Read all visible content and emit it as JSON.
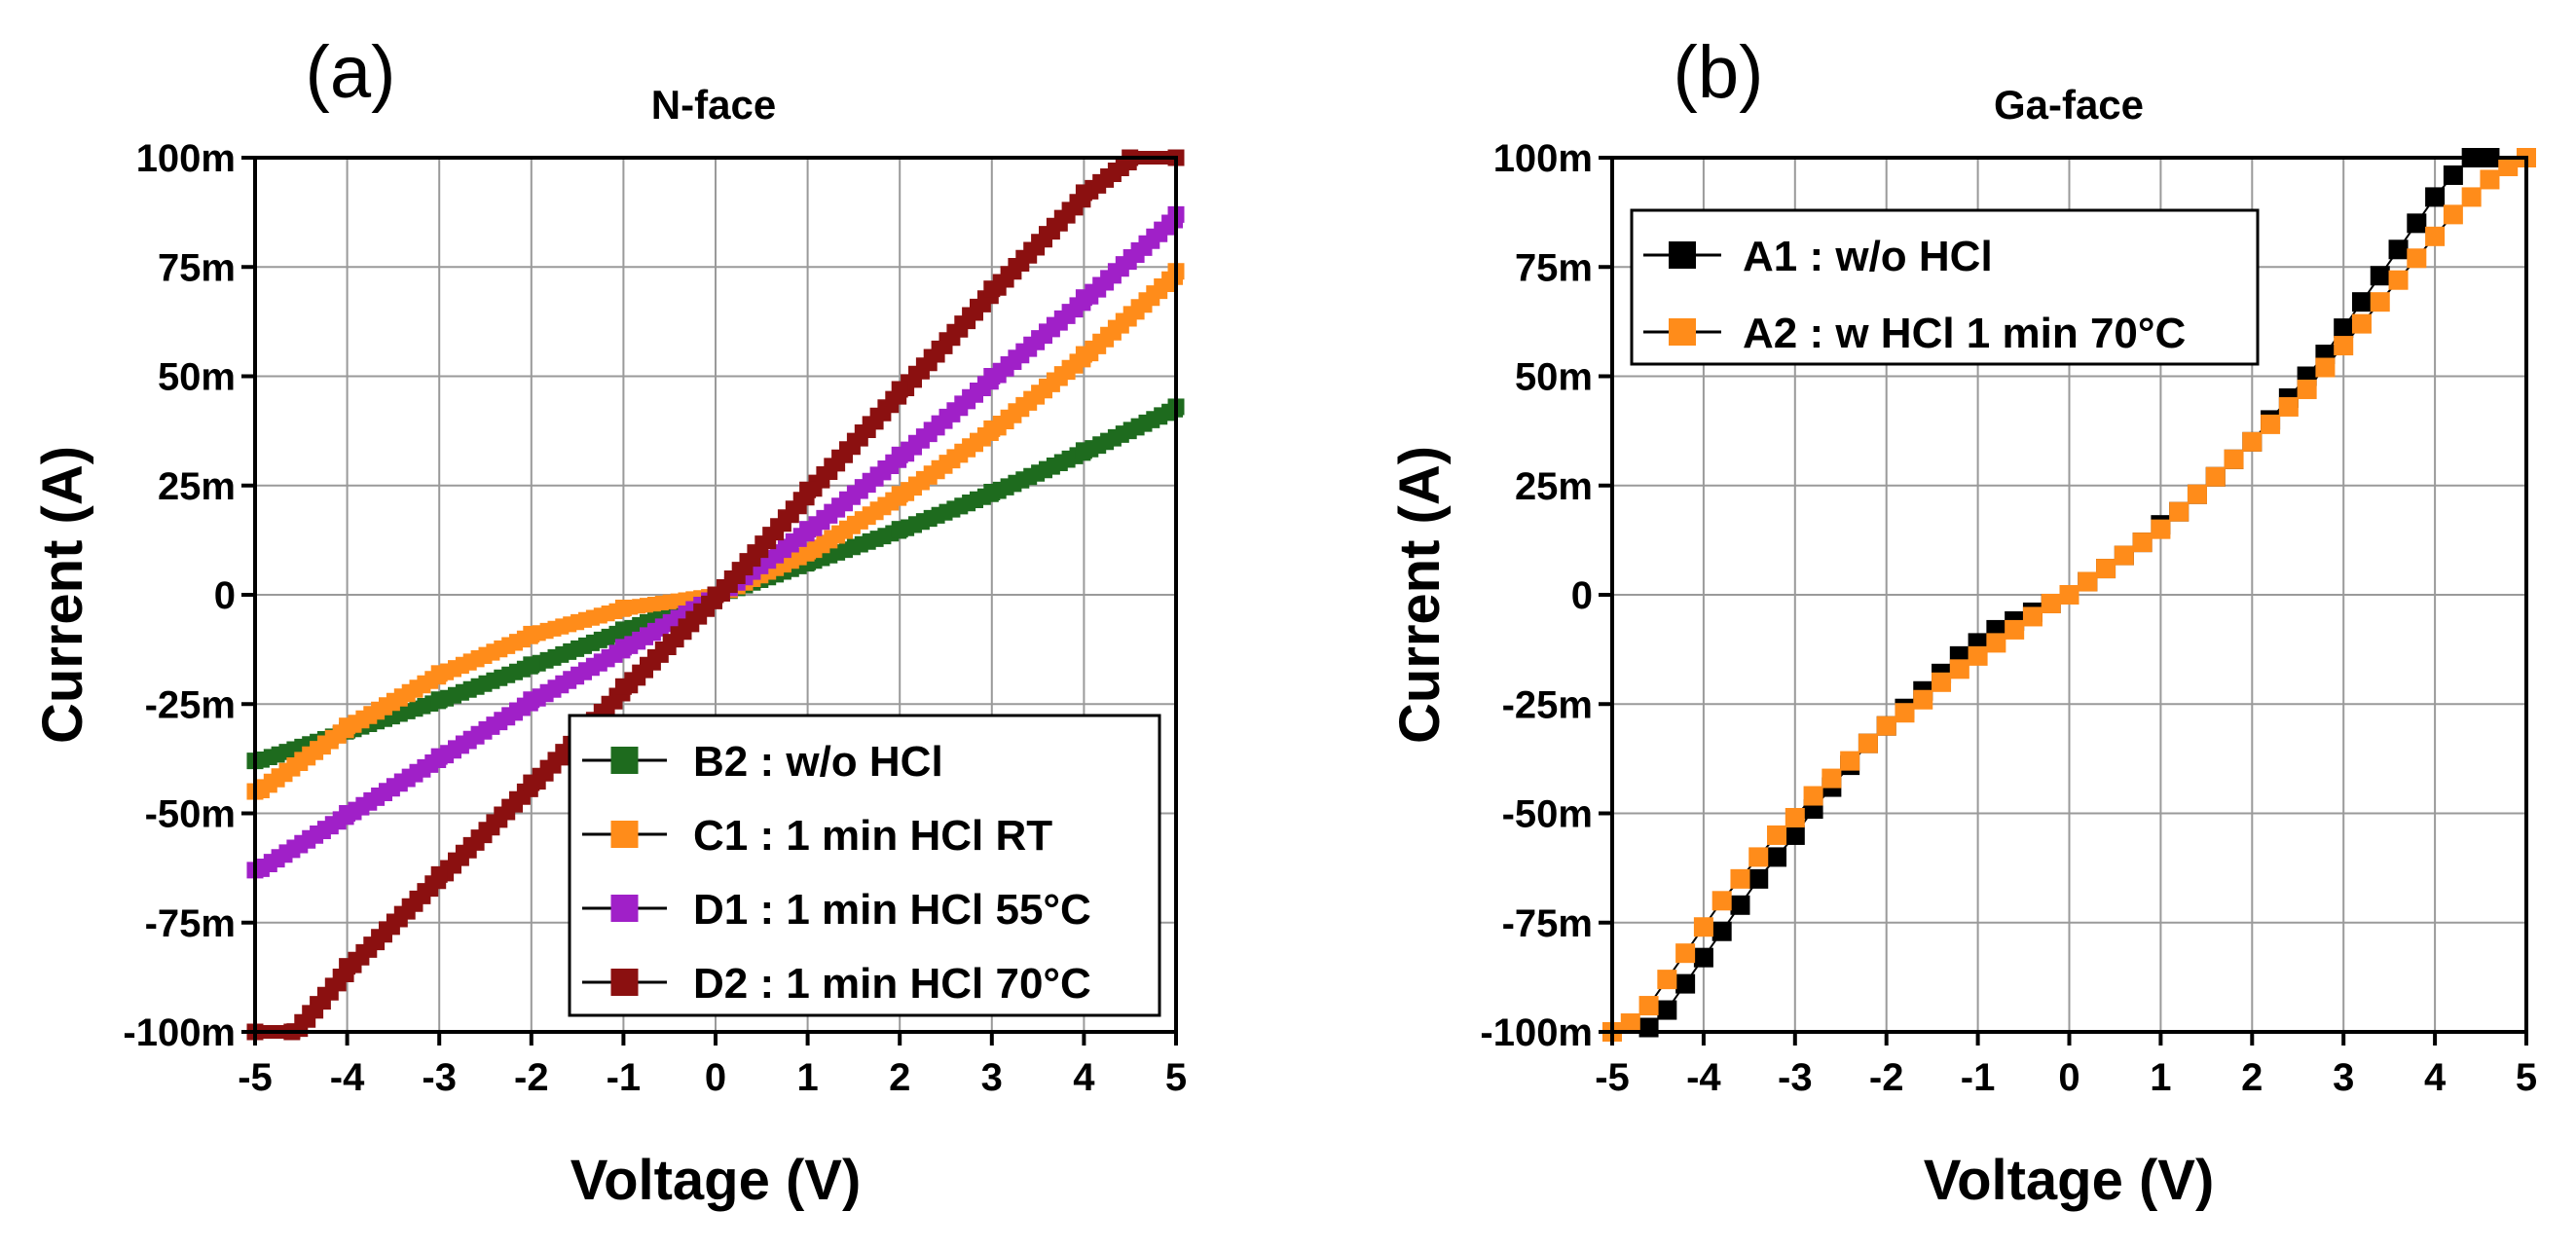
{
  "chart_data": [
    {
      "type": "line",
      "panel_label": "(a)",
      "title": "N-face",
      "xlabel": "Voltage (V)",
      "ylabel": "Current (A)",
      "xlim": [
        -5,
        5
      ],
      "ylim": [
        -0.1,
        0.1
      ],
      "xticks": [
        -5,
        -4,
        -3,
        -2,
        -1,
        0,
        1,
        2,
        3,
        4,
        5
      ],
      "xtick_labels": [
        "-5",
        "-4",
        "-3",
        "-2",
        "-1",
        "0",
        "1",
        "2",
        "3",
        "4",
        "5"
      ],
      "yticks": [
        -0.1,
        -0.075,
        -0.05,
        -0.025,
        0,
        0.025,
        0.05,
        0.075,
        0.1
      ],
      "ytick_labels": [
        "-100m",
        "-75m",
        "-50m",
        "-25m",
        "0",
        "25m",
        "50m",
        "75m",
        "100m"
      ],
      "grid": true,
      "legend_position": "bottom-right",
      "series": [
        {
          "name": "B2 : w/o HCl",
          "color": "#1e6b1e",
          "x": [
            -5,
            -4,
            -3,
            -2,
            -1,
            0,
            1,
            2,
            3,
            4,
            5
          ],
          "y": [
            -0.038,
            -0.031,
            -0.024,
            -0.016,
            -0.008,
            0,
            0.0075,
            0.015,
            0.0235,
            0.033,
            0.043
          ]
        },
        {
          "name": "C1 : 1 min HCl RT",
          "color": "#ff8c1a",
          "x": [
            -5,
            -4,
            -3,
            -2,
            -1,
            0,
            1,
            2,
            3,
            4,
            5
          ],
          "y": [
            -0.045,
            -0.03,
            -0.018,
            -0.009,
            -0.003,
            0,
            0.01,
            0.023,
            0.038,
            0.055,
            0.074
          ]
        },
        {
          "name": "D1 : 1 min HCl 55°C",
          "color": "#a020c8",
          "x": [
            -5,
            -4,
            -3,
            -2,
            -1,
            0,
            1,
            2,
            3,
            4,
            5
          ],
          "y": [
            -0.063,
            -0.05,
            -0.037,
            -0.024,
            -0.012,
            0,
            0.015,
            0.032,
            0.05,
            0.068,
            0.087
          ]
        },
        {
          "name": "D2 : 1 min HCl 70°C",
          "color": "#8b1010",
          "x": [
            -5,
            -4.6,
            -4,
            -3,
            -2,
            -1,
            0,
            1,
            2,
            3,
            4,
            4.5,
            5
          ],
          "y": [
            -0.1,
            -0.1,
            -0.085,
            -0.064,
            -0.043,
            -0.021,
            0,
            0.024,
            0.047,
            0.07,
            0.092,
            0.1,
            0.1
          ]
        }
      ]
    },
    {
      "type": "scatter",
      "panel_label": "(b)",
      "title": "Ga-face",
      "xlabel": "Voltage (V)",
      "ylabel": "Current (A)",
      "xlim": [
        -5,
        5
      ],
      "ylim": [
        -0.1,
        0.1
      ],
      "xticks": [
        -5,
        -4,
        -3,
        -2,
        -1,
        0,
        1,
        2,
        3,
        4,
        5
      ],
      "xtick_labels": [
        "-5",
        "-4",
        "-3",
        "-2",
        "-1",
        "0",
        "1",
        "2",
        "3",
        "4",
        "5"
      ],
      "yticks": [
        -0.1,
        -0.075,
        -0.05,
        -0.025,
        0,
        0.025,
        0.05,
        0.075,
        0.1
      ],
      "ytick_labels": [
        "-100m",
        "-75m",
        "-50m",
        "-25m",
        "0",
        "25m",
        "50m",
        "75m",
        "100m"
      ],
      "grid": true,
      "legend_position": "top-left",
      "series": [
        {
          "name": "A1 : w/o HCl",
          "color": "#000000",
          "x": [
            -4.6,
            -4.4,
            -4.2,
            -4.0,
            -3.8,
            -3.6,
            -3.4,
            -3.2,
            -3.0,
            -2.8,
            -2.6,
            -2.4,
            -2.2,
            -2.0,
            -1.8,
            -1.6,
            -1.4,
            -1.2,
            -1.0,
            -0.8,
            -0.6,
            -0.4,
            -0.2,
            0.0,
            0.2,
            0.4,
            0.6,
            0.8,
            1.0,
            1.2,
            1.4,
            1.6,
            1.8,
            2.0,
            2.2,
            2.4,
            2.6,
            2.8,
            3.0,
            3.2,
            3.4,
            3.6,
            3.8,
            4.0,
            4.2,
            4.4,
            4.6
          ],
          "y": [
            -0.099,
            -0.095,
            -0.089,
            -0.083,
            -0.077,
            -0.071,
            -0.065,
            -0.06,
            -0.055,
            -0.049,
            -0.044,
            -0.039,
            -0.034,
            -0.03,
            -0.026,
            -0.022,
            -0.018,
            -0.014,
            -0.011,
            -0.008,
            -0.006,
            -0.004,
            -0.002,
            0.0,
            0.003,
            0.006,
            0.009,
            0.012,
            0.016,
            0.019,
            0.023,
            0.027,
            0.031,
            0.035,
            0.04,
            0.045,
            0.05,
            0.055,
            0.061,
            0.067,
            0.073,
            0.079,
            0.085,
            0.091,
            0.096,
            0.1,
            0.1
          ]
        },
        {
          "name": "A2 : w HCl 1 min 70°C",
          "color": "#ff8c1a",
          "x": [
            -5.0,
            -4.8,
            -4.6,
            -4.4,
            -4.2,
            -4.0,
            -3.8,
            -3.6,
            -3.4,
            -3.2,
            -3.0,
            -2.8,
            -2.6,
            -2.4,
            -2.2,
            -2.0,
            -1.8,
            -1.6,
            -1.4,
            -1.2,
            -1.0,
            -0.8,
            -0.6,
            -0.4,
            -0.2,
            0.0,
            0.2,
            0.4,
            0.6,
            0.8,
            1.0,
            1.2,
            1.4,
            1.6,
            1.8,
            2.0,
            2.2,
            2.4,
            2.6,
            2.8,
            3.0,
            3.2,
            3.4,
            3.6,
            3.8,
            4.0,
            4.2,
            4.4,
            4.6,
            4.8,
            5.0
          ],
          "y": [
            -0.1,
            -0.098,
            -0.094,
            -0.088,
            -0.082,
            -0.076,
            -0.07,
            -0.065,
            -0.06,
            -0.055,
            -0.051,
            -0.046,
            -0.042,
            -0.038,
            -0.034,
            -0.03,
            -0.027,
            -0.024,
            -0.02,
            -0.017,
            -0.014,
            -0.011,
            -0.008,
            -0.005,
            -0.002,
            0.0,
            0.003,
            0.006,
            0.009,
            0.012,
            0.015,
            0.019,
            0.023,
            0.027,
            0.031,
            0.035,
            0.039,
            0.043,
            0.047,
            0.052,
            0.057,
            0.062,
            0.067,
            0.072,
            0.077,
            0.082,
            0.087,
            0.091,
            0.095,
            0.098,
            0.1
          ]
        }
      ]
    }
  ]
}
